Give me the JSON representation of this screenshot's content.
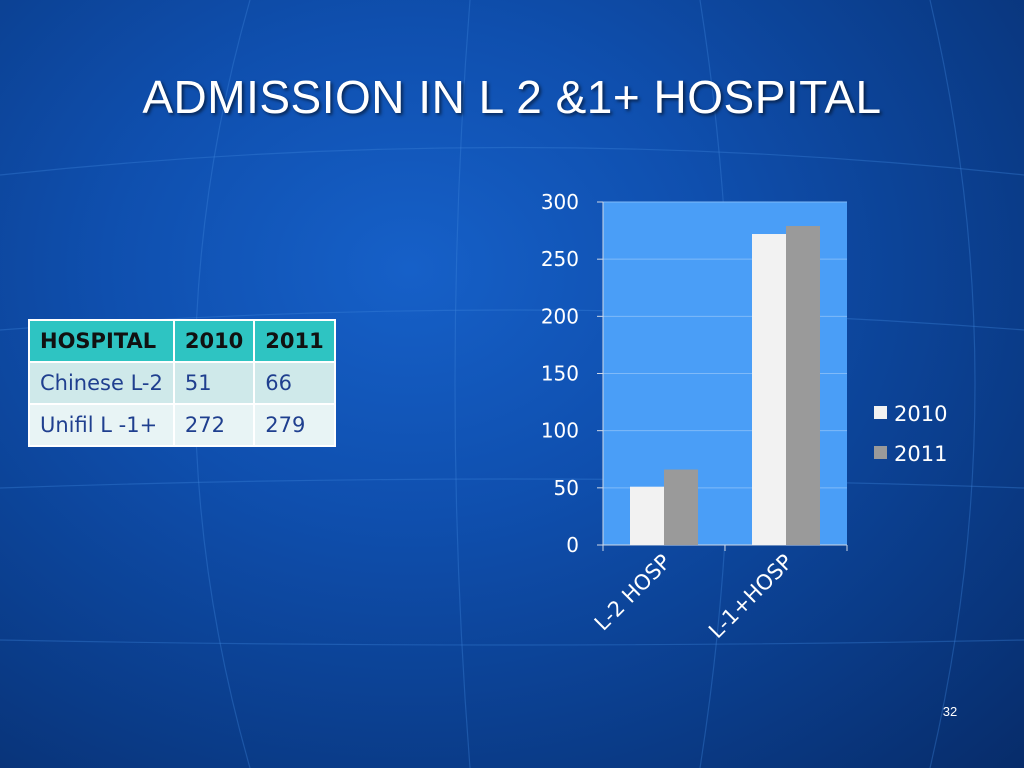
{
  "title": "ADMISSION IN L 2 &1+ HOSPITAL",
  "slide_number": "32",
  "table": {
    "headers": [
      "HOSPITAL",
      "2010",
      "2011"
    ],
    "rows": [
      [
        "Chinese L-2",
        "51",
        "66"
      ],
      [
        "Unifil L -1+",
        "272",
        "279"
      ]
    ],
    "header_color": "#2ec4c2"
  },
  "chart_data": {
    "type": "bar",
    "categories": [
      "L-2 HOSP",
      "L-1+HOSP"
    ],
    "series": [
      {
        "name": "2010",
        "values": [
          51,
          272
        ],
        "color": "#f2f2f2"
      },
      {
        "name": "2011",
        "values": [
          66,
          279
        ],
        "color": "#9a9a9a"
      }
    ],
    "ylim": [
      0,
      300
    ],
    "yticks": [
      0,
      50,
      100,
      150,
      200,
      250,
      300
    ],
    "grid": true,
    "legend_position": "right",
    "plot_background": "#4a9ef7",
    "xlabel": "",
    "ylabel": ""
  }
}
